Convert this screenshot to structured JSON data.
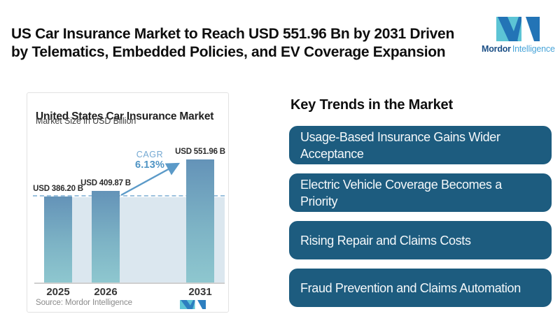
{
  "header": {
    "title": "US Car Insurance Market to Reach USD 551.96 Bn by 2031 Driven\nby Telematics, Embedded Policies, and EV Coverage Expansion",
    "logo": {
      "primary": "Mordor",
      "secondary": "Intelligence"
    }
  },
  "chart_data": {
    "type": "bar",
    "title": "United States Car Insurance Market",
    "subtitle": "Market Size in USD Billion",
    "categories": [
      "2025",
      "2026",
      "2031"
    ],
    "values": [
      386.2,
      409.87,
      551.96
    ],
    "bar_labels": [
      "USD 386.20 B",
      "USD 409.87 B",
      "USD 551.96 B"
    ],
    "baseline_value": 386.2,
    "ylim": [
      0,
      551.96
    ],
    "cagr": {
      "label": "CAGR",
      "value": "6.13%"
    },
    "source": "Source: Mordor Intelligence",
    "legend_position": "none",
    "grid": false,
    "colors": {
      "bar_top": "#6493b8",
      "bar_bottom": "#8ec7cf",
      "baseline_dash": "#9cc2de",
      "below_baseline_area": "#dbe7ef",
      "cagr_text": "#4f94c4"
    }
  },
  "trends": {
    "heading": "Key Trends in the Market",
    "box_color": "#1d5c7f",
    "items": [
      "Usage-Based Insurance Gains Wider\nAcceptance",
      "Electric Vehicle Coverage Becomes a\nPriority",
      "Rising Repair and Claims Costs",
      "Fraud Prevention and Claims Automation"
    ]
  }
}
